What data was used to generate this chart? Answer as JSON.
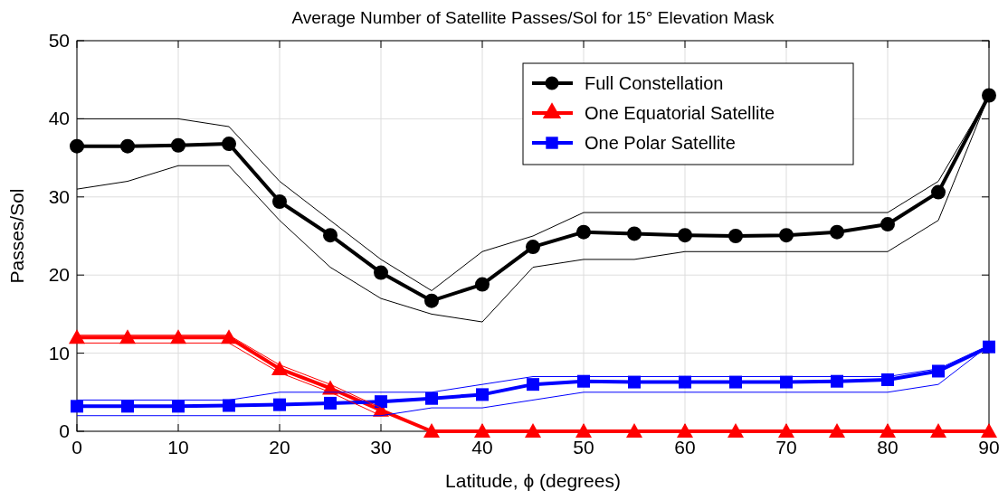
{
  "chart_data": {
    "type": "line",
    "title": "Average Number of Satellite Passes/Sol for 15° Elevation Mask",
    "xlabel": "Latitude, ϕ (degrees)",
    "ylabel": "Passes/Sol",
    "x": [
      0,
      5,
      10,
      15,
      20,
      25,
      30,
      35,
      40,
      45,
      50,
      55,
      60,
      65,
      70,
      75,
      80,
      85,
      90
    ],
    "series": [
      {
        "name": "Full Constellation",
        "color": "#000000",
        "marker": "circle",
        "values": [
          36.5,
          36.5,
          36.6,
          36.8,
          29.4,
          25.1,
          20.3,
          16.7,
          18.8,
          23.6,
          25.5,
          25.3,
          25.1,
          25.0,
          25.1,
          25.5,
          26.5,
          30.6,
          43
        ]
      },
      {
        "name": "One Equatorial Satellite",
        "color": "#ff0000",
        "marker": "triangle",
        "values": [
          12,
          12,
          12,
          12,
          8,
          5.5,
          2.7,
          0,
          0,
          0,
          0,
          0,
          0,
          0,
          0,
          0,
          0,
          0,
          0
        ]
      },
      {
        "name": "One Polar Satellite",
        "color": "#0000ff",
        "marker": "square",
        "values": [
          3.2,
          3.2,
          3.2,
          3.3,
          3.4,
          3.6,
          3.8,
          4.2,
          4.7,
          6,
          6.4,
          6.3,
          6.3,
          6.3,
          6.3,
          6.4,
          6.6,
          7.7,
          10.8
        ]
      },
      {
        "color": "#000000",
        "marker": "none",
        "values": [
          40,
          40,
          40,
          39,
          32,
          27,
          22,
          18,
          23,
          25,
          28,
          28,
          28,
          28,
          28,
          28,
          28,
          32,
          43
        ]
      },
      {
        "color": "#000000",
        "marker": "none",
        "values": [
          31,
          32,
          34,
          34,
          27,
          21,
          17,
          15,
          14,
          21,
          22,
          22,
          23,
          23,
          23,
          23,
          23,
          27,
          43
        ]
      },
      {
        "color": "#ff0000",
        "marker": "none",
        "values": [
          12.3,
          12.3,
          12.3,
          12.3,
          8.5,
          6,
          3,
          null,
          null,
          null,
          null,
          null,
          null,
          null,
          null,
          null,
          null,
          null,
          null
        ]
      },
      {
        "color": "#ff0000",
        "marker": "none",
        "values": [
          11.3,
          11.3,
          11.3,
          11.3,
          7.5,
          5,
          2,
          null,
          null,
          null,
          null,
          null,
          null,
          null,
          null,
          null,
          null,
          null,
          null
        ]
      },
      {
        "color": "#0000ff",
        "marker": "none",
        "values": [
          4,
          4,
          4,
          4,
          5,
          5,
          5,
          5,
          6,
          7,
          7,
          7,
          7,
          7,
          7,
          7,
          7,
          8,
          11
        ]
      },
      {
        "color": "#0000ff",
        "marker": "none",
        "values": [
          2,
          2,
          2,
          2,
          2,
          2,
          2,
          3,
          3,
          4,
          5,
          5,
          5,
          5,
          5,
          5,
          5,
          6,
          11
        ]
      }
    ],
    "xlim": [
      0,
      90
    ],
    "xticks": [
      0,
      10,
      20,
      30,
      40,
      50,
      60,
      70,
      80,
      90
    ],
    "ylim": [
      0,
      50
    ],
    "yticks": [
      0,
      10,
      20,
      30,
      40,
      50
    ],
    "grid": true,
    "legend": "top right",
    "line_style": "solid"
  }
}
